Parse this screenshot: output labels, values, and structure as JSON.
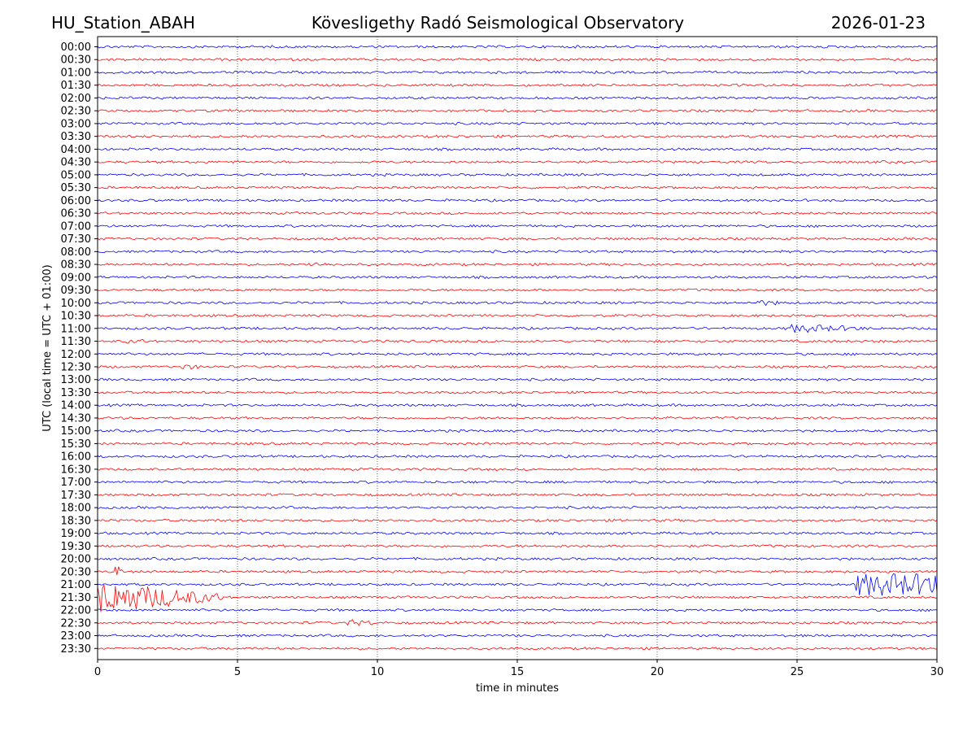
{
  "header": {
    "station": "HU_Station_ABAH",
    "observatory": "Kövesligethy Radó Seismological Observatory",
    "date": "2026-01-23"
  },
  "colors": {
    "trace_a": "#0000ff",
    "trace_b": "#ff0000",
    "axis": "#000000"
  },
  "chart_data": {
    "type": "line",
    "title": "Kövesligethy Radó Seismological Observatory",
    "xlabel": "time in minutes",
    "ylabel": "UTC (local time = UTC + 01:00)",
    "xlim": [
      0,
      30
    ],
    "x_ticks": [
      "0",
      "5",
      "10",
      "15",
      "20",
      "25",
      "30"
    ],
    "grid": "vertical dotted at each x tick",
    "rows": [
      "00:00",
      "00:30",
      "01:00",
      "01:30",
      "02:00",
      "02:30",
      "03:00",
      "03:30",
      "04:00",
      "04:30",
      "05:00",
      "05:30",
      "06:00",
      "06:30",
      "07:00",
      "07:30",
      "08:00",
      "08:30",
      "09:00",
      "09:30",
      "10:00",
      "10:30",
      "11:00",
      "11:30",
      "12:00",
      "12:30",
      "13:00",
      "13:30",
      "14:00",
      "14:30",
      "15:00",
      "15:30",
      "16:00",
      "16:30",
      "17:00",
      "17:30",
      "18:00",
      "18:30",
      "19:00",
      "19:30",
      "20:00",
      "20:30",
      "21:00",
      "21:30",
      "22:00",
      "22:30",
      "23:00",
      "23:30"
    ],
    "series_colors": "alternating blue / red per row (blue at full hours, red at half hours)",
    "events": [
      {
        "row": "08:30",
        "start_min": 7.5,
        "end_min": 8.5,
        "amplitude": 0.25
      },
      {
        "row": "10:00",
        "start_min": 23.5,
        "end_min": 24.6,
        "amplitude": 0.3
      },
      {
        "row": "11:00",
        "start_min": 24.7,
        "end_min": 27.5,
        "amplitude": 0.5
      },
      {
        "row": "11:30",
        "start_min": 1.0,
        "end_min": 2.0,
        "amplitude": 0.2
      },
      {
        "row": "12:30",
        "start_min": 3.0,
        "end_min": 3.8,
        "amplitude": 0.3
      },
      {
        "row": "20:30",
        "start_min": 0.6,
        "end_min": 0.9,
        "amplitude": 1.0
      },
      {
        "row": "21:00",
        "start_min": 27.1,
        "end_min": 30.0,
        "amplitude": 1.4
      },
      {
        "row": "21:30",
        "start_min": 0.0,
        "end_min": 4.5,
        "amplitude": 2.2
      },
      {
        "row": "22:30",
        "start_min": 8.9,
        "end_min": 10.2,
        "amplitude": 0.35
      }
    ]
  }
}
